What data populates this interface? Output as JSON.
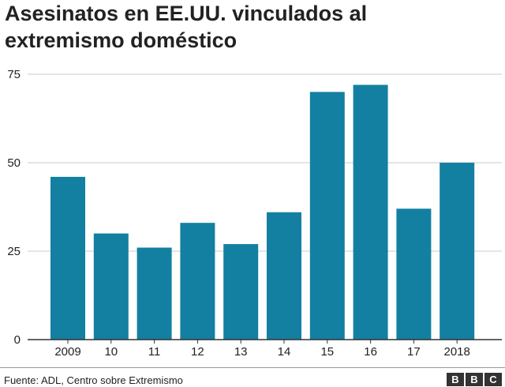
{
  "title_lines": [
    "Asesinatos en EE.UU. vinculados al",
    "extremismo doméstico"
  ],
  "source": "Fuente: ADL, Centro sobre Extremismo",
  "logo_letters": [
    "B",
    "B",
    "C"
  ],
  "colors": {
    "bar": "#1380A1",
    "grid": "#cbcbcb",
    "axis": "#333333",
    "text": "#222222"
  },
  "chart_data": {
    "type": "bar",
    "categories": [
      "2009",
      "10",
      "11",
      "12",
      "13",
      "14",
      "15",
      "16",
      "17",
      "2018"
    ],
    "values": [
      46,
      30,
      26,
      33,
      27,
      36,
      70,
      72,
      37,
      50
    ],
    "title": "Asesinatos en EE.UU. vinculados al extremismo doméstico",
    "xlabel": "",
    "ylabel": "",
    "ylim": [
      0,
      75
    ],
    "yticks": [
      0,
      25,
      50,
      75
    ],
    "grid": true,
    "legend": "none"
  }
}
